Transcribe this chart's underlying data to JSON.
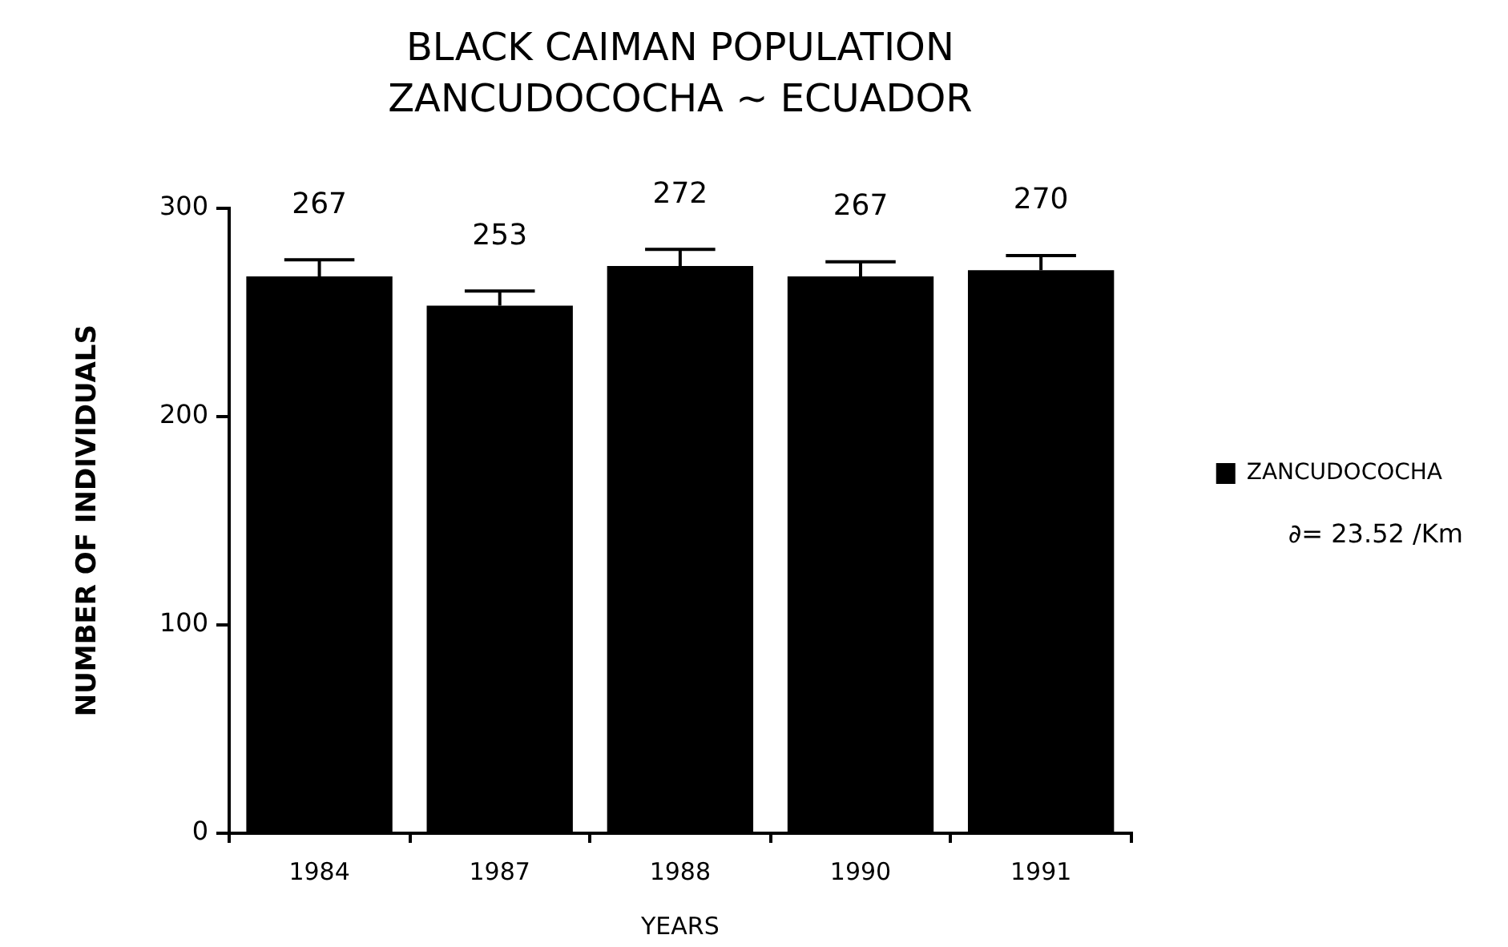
{
  "chart_data": {
    "type": "bar",
    "title": "BLACK CAIMAN POPULATION",
    "subtitle": "ZANCUDOCOCHA ~ ECUADOR",
    "xlabel": "YEARS",
    "ylabel": "NUMBER OF INDIVIDUALS",
    "categories": [
      "1984",
      "1987",
      "1988",
      "1990",
      "1991"
    ],
    "series": [
      {
        "name": "ZANCUDOCOCHA",
        "color": "#000000",
        "values": [
          267,
          253,
          272,
          267,
          270
        ],
        "errors": [
          [
            267,
            275
          ],
          [
            253,
            260
          ],
          [
            272,
            280
          ],
          [
            267,
            274
          ],
          [
            270,
            277
          ]
        ]
      }
    ],
    "ylim": [
      0,
      300
    ],
    "yticks": [
      0,
      100,
      200,
      300
    ],
    "grid": false,
    "legend": "right",
    "data_labels": true,
    "annotations": [
      "∂= 23.52 /Km"
    ]
  }
}
